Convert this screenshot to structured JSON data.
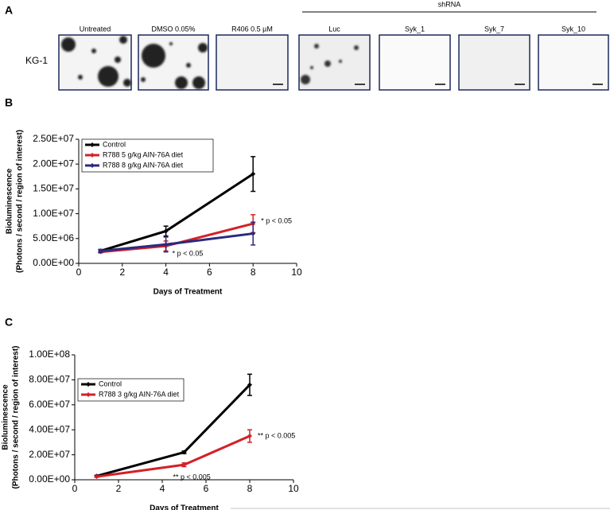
{
  "panel_a": {
    "label": "A",
    "group_label": "shRNA",
    "row_label": "KG-1",
    "images": [
      "Untreated",
      "DMSO 0.05%",
      "R406 0.5 µM",
      "Luc",
      "Syk_1",
      "Syk_7",
      "Syk_10"
    ]
  },
  "chart_data": [
    {
      "type": "line",
      "panel": "B",
      "xlabel": "Days of Treatment",
      "ylabel": [
        "Bioluminescence",
        "(Photons / second / region of interest)"
      ],
      "xlim": [
        0,
        10
      ],
      "xticks": [
        0,
        2,
        4,
        6,
        8,
        10
      ],
      "ylim": [
        0,
        25000000
      ],
      "yticks": [
        {
          "value": 0,
          "label": "0.00E+00"
        },
        {
          "value": 5000000,
          "label": "5.00E+06"
        },
        {
          "value": 10000000,
          "label": "1.00E+07"
        },
        {
          "value": 15000000,
          "label": "1.50E+07"
        },
        {
          "value": 20000000,
          "label": "2.00E+07"
        },
        {
          "value": 25000000,
          "label": "2.50E+07"
        }
      ],
      "series": [
        {
          "name": "Control",
          "color": "#000000",
          "x": [
            1,
            4,
            8
          ],
          "values": [
            2500000,
            6500000,
            18000000
          ],
          "errors": [
            300000,
            1000000,
            3500000
          ]
        },
        {
          "name": "R788 5 g/kg AIN-76A diet",
          "color": "#d42027",
          "x": [
            1,
            4,
            8
          ],
          "values": [
            2300000,
            3500000,
            8000000
          ],
          "errors": [
            200000,
            1000000,
            1800000
          ]
        },
        {
          "name": "R788 8 g/kg AIN-76A diet",
          "color": "#2b2a7f",
          "x": [
            1,
            4,
            8
          ],
          "values": [
            2500000,
            3800000,
            6000000
          ],
          "errors": [
            300000,
            1500000,
            2300000
          ]
        }
      ],
      "annotations": [
        "* p < 0.05",
        "* p < 0.05"
      ]
    },
    {
      "type": "line",
      "panel": "C",
      "xlabel": "Days of Treatment",
      "ylabel": [
        "Bioluminescence",
        "(Photons / second / region of interest)"
      ],
      "xlim": [
        0,
        10
      ],
      "xticks": [
        0,
        2,
        4,
        6,
        8,
        10
      ],
      "ylim": [
        0,
        100000000
      ],
      "yticks": [
        {
          "value": 0,
          "label": "0.00E+00"
        },
        {
          "value": 20000000,
          "label": "2.00E+07"
        },
        {
          "value": 40000000,
          "label": "4.00E+07"
        },
        {
          "value": 60000000,
          "label": "6.00E+07"
        },
        {
          "value": 80000000,
          "label": "8.00E+07"
        },
        {
          "value": 100000000,
          "label": "1.00E+08"
        }
      ],
      "series": [
        {
          "name": "Control",
          "color": "#000000",
          "x": [
            1,
            5,
            8
          ],
          "values": [
            3000000,
            22000000,
            76000000
          ],
          "errors": [
            500000,
            1000000,
            8500000
          ]
        },
        {
          "name": "R788 3 g/kg AIN-76A diet",
          "color": "#d42027",
          "x": [
            1,
            5,
            8
          ],
          "values": [
            2500000,
            12000000,
            35000000
          ],
          "errors": [
            500000,
            1500000,
            5000000
          ]
        }
      ],
      "annotations": [
        "** p < 0.005",
        "** p < 0.005"
      ]
    }
  ]
}
